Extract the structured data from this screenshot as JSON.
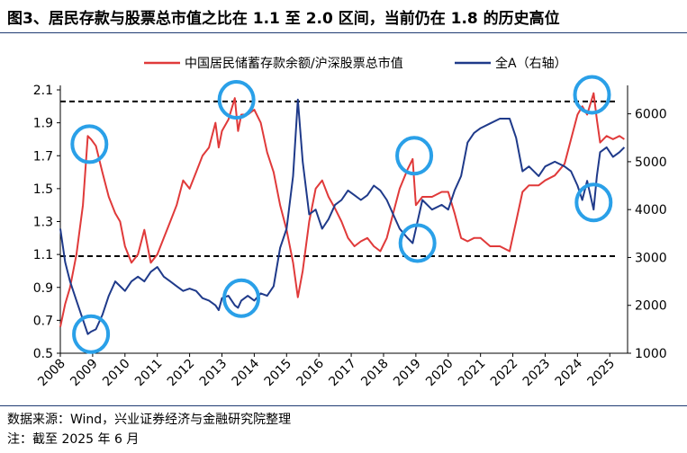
{
  "title": "图3、居民存款与股票总市值之比在 1.1 至 2.0 区间，当前仍在 1.8 的历史高位",
  "footer": {
    "source": "数据来源：Wind，兴业证券经济与金融研究院整理",
    "note": "注：截至 2025 年 6 月"
  },
  "chart_data": {
    "type": "line",
    "title": "图3、居民存款与股票总市值之比在 1.1 至 2.0 区间，当前仍在 1.8 的历史高位",
    "x_ticks": [
      "2008",
      "2009",
      "2010",
      "2011",
      "2012",
      "2013",
      "2014",
      "2015",
      "2016",
      "2017",
      "2018",
      "2019",
      "2020",
      "2021",
      "2022",
      "2023",
      "2024",
      "2025"
    ],
    "y_left": {
      "ticks": [
        "0.5",
        "0.7",
        "0.9",
        "1.1",
        "1.3",
        "1.5",
        "1.7",
        "1.9",
        "2.1"
      ],
      "range": [
        0.5,
        2.1
      ]
    },
    "y_right": {
      "ticks": [
        "1000",
        "2000",
        "3000",
        "4000",
        "5000",
        "6000"
      ],
      "range": [
        1000,
        6500
      ]
    },
    "colors": {
      "ratio": "#e03a3a",
      "index": "#1f3a8a",
      "circle": "#2aa0e8",
      "dash": "#000000"
    },
    "reference_lines": [
      2.03,
      1.09
    ],
    "series": [
      {
        "name": "中国居民储蓄存款余额/沪深股票总市值",
        "axis": "left",
        "points": [
          [
            2008.0,
            0.66
          ],
          [
            2008.15,
            0.8
          ],
          [
            2008.3,
            0.9
          ],
          [
            2008.5,
            1.1
          ],
          [
            2008.7,
            1.4
          ],
          [
            2008.85,
            1.82
          ],
          [
            2008.95,
            1.8
          ],
          [
            2009.1,
            1.76
          ],
          [
            2009.3,
            1.6
          ],
          [
            2009.5,
            1.45
          ],
          [
            2009.7,
            1.35
          ],
          [
            2009.85,
            1.3
          ],
          [
            2010.0,
            1.15
          ],
          [
            2010.2,
            1.05
          ],
          [
            2010.4,
            1.1
          ],
          [
            2010.6,
            1.25
          ],
          [
            2010.8,
            1.05
          ],
          [
            2011.0,
            1.1
          ],
          [
            2011.2,
            1.2
          ],
          [
            2011.4,
            1.3
          ],
          [
            2011.6,
            1.4
          ],
          [
            2011.8,
            1.55
          ],
          [
            2012.0,
            1.5
          ],
          [
            2012.2,
            1.6
          ],
          [
            2012.4,
            1.7
          ],
          [
            2012.6,
            1.75
          ],
          [
            2012.8,
            1.9
          ],
          [
            2012.9,
            1.75
          ],
          [
            2013.0,
            1.85
          ],
          [
            2013.2,
            1.92
          ],
          [
            2013.4,
            2.05
          ],
          [
            2013.5,
            1.85
          ],
          [
            2013.6,
            1.95
          ],
          [
            2013.8,
            1.95
          ],
          [
            2014.0,
            1.98
          ],
          [
            2014.2,
            1.9
          ],
          [
            2014.4,
            1.72
          ],
          [
            2014.6,
            1.6
          ],
          [
            2014.8,
            1.4
          ],
          [
            2015.0,
            1.25
          ],
          [
            2015.2,
            1.05
          ],
          [
            2015.35,
            0.84
          ],
          [
            2015.5,
            1.0
          ],
          [
            2015.7,
            1.3
          ],
          [
            2015.9,
            1.5
          ],
          [
            2016.1,
            1.55
          ],
          [
            2016.3,
            1.45
          ],
          [
            2016.5,
            1.38
          ],
          [
            2016.7,
            1.3
          ],
          [
            2016.9,
            1.2
          ],
          [
            2017.1,
            1.15
          ],
          [
            2017.3,
            1.18
          ],
          [
            2017.5,
            1.2
          ],
          [
            2017.7,
            1.15
          ],
          [
            2017.9,
            1.12
          ],
          [
            2018.1,
            1.2
          ],
          [
            2018.3,
            1.35
          ],
          [
            2018.5,
            1.5
          ],
          [
            2018.75,
            1.62
          ],
          [
            2018.9,
            1.68
          ],
          [
            2019.0,
            1.4
          ],
          [
            2019.2,
            1.45
          ],
          [
            2019.5,
            1.45
          ],
          [
            2019.8,
            1.48
          ],
          [
            2020.0,
            1.48
          ],
          [
            2020.2,
            1.35
          ],
          [
            2020.4,
            1.2
          ],
          [
            2020.6,
            1.18
          ],
          [
            2020.8,
            1.2
          ],
          [
            2021.0,
            1.2
          ],
          [
            2021.3,
            1.15
          ],
          [
            2021.6,
            1.15
          ],
          [
            2021.9,
            1.12
          ],
          [
            2022.1,
            1.3
          ],
          [
            2022.3,
            1.48
          ],
          [
            2022.5,
            1.52
          ],
          [
            2022.8,
            1.52
          ],
          [
            2023.0,
            1.55
          ],
          [
            2023.3,
            1.58
          ],
          [
            2023.6,
            1.65
          ],
          [
            2023.8,
            1.8
          ],
          [
            2024.0,
            1.95
          ],
          [
            2024.15,
            2.0
          ],
          [
            2024.3,
            1.95
          ],
          [
            2024.5,
            2.08
          ],
          [
            2024.6,
            1.92
          ],
          [
            2024.7,
            1.78
          ],
          [
            2024.9,
            1.82
          ],
          [
            2025.1,
            1.8
          ],
          [
            2025.3,
            1.82
          ],
          [
            2025.45,
            1.8
          ]
        ]
      },
      {
        "name": "全A（右轴）",
        "axis": "right",
        "points": [
          [
            2008.0,
            3600
          ],
          [
            2008.15,
            2900
          ],
          [
            2008.3,
            2500
          ],
          [
            2008.5,
            2100
          ],
          [
            2008.7,
            1700
          ],
          [
            2008.85,
            1400
          ],
          [
            2008.95,
            1450
          ],
          [
            2009.1,
            1500
          ],
          [
            2009.3,
            1800
          ],
          [
            2009.5,
            2200
          ],
          [
            2009.7,
            2500
          ],
          [
            2009.85,
            2400
          ],
          [
            2010.0,
            2300
          ],
          [
            2010.2,
            2500
          ],
          [
            2010.4,
            2600
          ],
          [
            2010.6,
            2500
          ],
          [
            2010.8,
            2700
          ],
          [
            2011.0,
            2800
          ],
          [
            2011.2,
            2600
          ],
          [
            2011.4,
            2500
          ],
          [
            2011.6,
            2400
          ],
          [
            2011.8,
            2300
          ],
          [
            2012.0,
            2350
          ],
          [
            2012.2,
            2300
          ],
          [
            2012.4,
            2150
          ],
          [
            2012.6,
            2100
          ],
          [
            2012.8,
            2000
          ],
          [
            2012.9,
            1900
          ],
          [
            2013.0,
            2150
          ],
          [
            2013.2,
            2200
          ],
          [
            2013.4,
            2000
          ],
          [
            2013.5,
            1950
          ],
          [
            2013.6,
            2100
          ],
          [
            2013.8,
            2200
          ],
          [
            2014.0,
            2100
          ],
          [
            2014.2,
            2250
          ],
          [
            2014.4,
            2200
          ],
          [
            2014.6,
            2400
          ],
          [
            2014.8,
            3200
          ],
          [
            2015.0,
            3600
          ],
          [
            2015.2,
            4700
          ],
          [
            2015.35,
            6300
          ],
          [
            2015.5,
            5000
          ],
          [
            2015.7,
            3900
          ],
          [
            2015.9,
            4000
          ],
          [
            2016.1,
            3600
          ],
          [
            2016.3,
            3800
          ],
          [
            2016.5,
            4100
          ],
          [
            2016.7,
            4200
          ],
          [
            2016.9,
            4400
          ],
          [
            2017.1,
            4300
          ],
          [
            2017.3,
            4200
          ],
          [
            2017.5,
            4300
          ],
          [
            2017.7,
            4500
          ],
          [
            2017.9,
            4400
          ],
          [
            2018.1,
            4200
          ],
          [
            2018.3,
            3900
          ],
          [
            2018.5,
            3600
          ],
          [
            2018.75,
            3400
          ],
          [
            2018.9,
            3300
          ],
          [
            2019.0,
            3600
          ],
          [
            2019.2,
            4200
          ],
          [
            2019.5,
            4000
          ],
          [
            2019.8,
            4100
          ],
          [
            2020.0,
            4000
          ],
          [
            2020.2,
            4400
          ],
          [
            2020.4,
            4700
          ],
          [
            2020.6,
            5400
          ],
          [
            2020.8,
            5600
          ],
          [
            2021.0,
            5700
          ],
          [
            2021.3,
            5800
          ],
          [
            2021.6,
            5900
          ],
          [
            2021.9,
            5900
          ],
          [
            2022.1,
            5500
          ],
          [
            2022.3,
            4800
          ],
          [
            2022.5,
            4900
          ],
          [
            2022.8,
            4700
          ],
          [
            2023.0,
            4900
          ],
          [
            2023.3,
            5000
          ],
          [
            2023.6,
            4900
          ],
          [
            2023.8,
            4800
          ],
          [
            2024.0,
            4500
          ],
          [
            2024.15,
            4200
          ],
          [
            2024.3,
            4600
          ],
          [
            2024.5,
            4000
          ],
          [
            2024.6,
            4700
          ],
          [
            2024.7,
            5200
          ],
          [
            2024.9,
            5300
          ],
          [
            2025.1,
            5100
          ],
          [
            2025.3,
            5200
          ],
          [
            2025.45,
            5300
          ]
        ]
      }
    ],
    "highlight_circles": [
      [
        2008.95,
        1400,
        "right"
      ],
      [
        2008.9,
        1.77,
        "left"
      ],
      [
        2013.45,
        2.04,
        "left"
      ],
      [
        2013.6,
        2150,
        "right"
      ],
      [
        2018.95,
        1.7,
        "left"
      ],
      [
        2019.05,
        3300,
        "right"
      ],
      [
        2024.45,
        2.07,
        "left"
      ],
      [
        2024.5,
        4150,
        "right"
      ]
    ]
  }
}
